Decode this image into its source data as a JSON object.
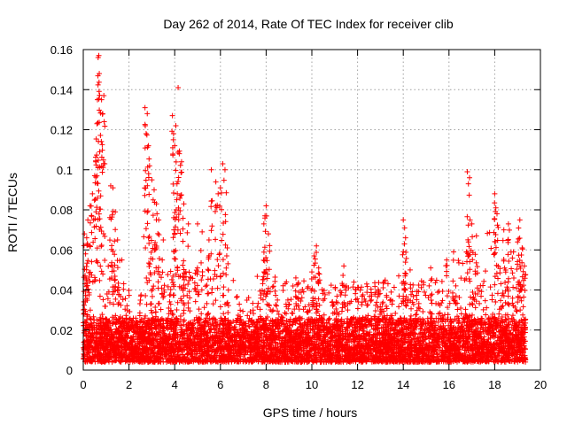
{
  "chart_data": {
    "type": "scatter",
    "title": "Day 262 of 2014, Rate Of TEC Index for receiver clib",
    "xlabel": "GPS time / hours",
    "ylabel": "ROTI / TECUs",
    "xlim": [
      0,
      20
    ],
    "ylim": [
      0,
      0.16
    ],
    "xticks": [
      0,
      2,
      4,
      6,
      8,
      10,
      12,
      14,
      16,
      18,
      20
    ],
    "yticks": [
      0,
      0.02,
      0.04,
      0.06,
      0.08,
      0.1,
      0.12,
      0.14,
      0.16
    ],
    "xtick_labels": [
      "0",
      "2",
      "4",
      "6",
      "8",
      "10",
      "12",
      "14",
      "16",
      "18",
      "20"
    ],
    "ytick_labels": [
      "0",
      "0.02",
      "0.04",
      "0.06",
      "0.08",
      "0.1",
      "0.12",
      "0.14",
      "0.16"
    ],
    "grid": true,
    "marker": "plus",
    "series": [
      {
        "name": "ROTI",
        "color": "#ff0000",
        "time_range_hours": [
          0,
          19.35
        ],
        "points": [
          [
            0.05,
            0.068
          ],
          [
            0.1,
            0.058
          ],
          [
            0.15,
            0.066
          ],
          [
            0.2,
            0.075
          ],
          [
            0.3,
            0.082
          ],
          [
            0.4,
            0.088
          ],
          [
            0.5,
            0.097
          ],
          [
            0.55,
            0.104
          ],
          [
            0.6,
            0.123
          ],
          [
            0.62,
            0.135
          ],
          [
            0.65,
            0.156
          ],
          [
            0.68,
            0.157
          ],
          [
            0.7,
            0.148
          ],
          [
            0.72,
            0.109
          ],
          [
            0.8,
            0.135
          ],
          [
            0.85,
            0.128
          ],
          [
            0.9,
            0.137
          ],
          [
            1.2,
            0.092
          ],
          [
            1.3,
            0.091
          ],
          [
            1.4,
            0.079
          ],
          [
            1.5,
            0.065
          ],
          [
            2.7,
            0.131
          ],
          [
            2.75,
            0.118
          ],
          [
            2.8,
            0.128
          ],
          [
            2.85,
            0.112
          ],
          [
            2.9,
            0.102
          ],
          [
            3.0,
            0.095
          ],
          [
            3.1,
            0.09
          ],
          [
            3.2,
            0.083
          ],
          [
            3.3,
            0.075
          ],
          [
            3.5,
            0.065
          ],
          [
            3.9,
            0.127
          ],
          [
            3.95,
            0.118
          ],
          [
            4.0,
            0.112
          ],
          [
            4.05,
            0.122
          ],
          [
            4.1,
            0.093
          ],
          [
            4.15,
            0.141
          ],
          [
            4.2,
            0.108
          ],
          [
            4.3,
            0.104
          ],
          [
            4.4,
            0.083
          ],
          [
            4.6,
            0.073
          ],
          [
            5.0,
            0.073
          ],
          [
            5.2,
            0.069
          ],
          [
            5.5,
            0.065
          ],
          [
            5.6,
            0.1
          ],
          [
            5.8,
            0.094
          ],
          [
            5.9,
            0.088
          ],
          [
            6.0,
            0.091
          ],
          [
            6.1,
            0.103
          ],
          [
            6.2,
            0.1
          ],
          [
            6.3,
            0.061
          ],
          [
            7.9,
            0.073
          ],
          [
            7.95,
            0.077
          ],
          [
            8.0,
            0.082
          ],
          [
            8.1,
            0.068
          ],
          [
            9.3,
            0.046
          ],
          [
            10.0,
            0.049
          ],
          [
            10.1,
            0.057
          ],
          [
            10.2,
            0.062
          ],
          [
            10.3,
            0.051
          ],
          [
            11.4,
            0.052
          ],
          [
            12.4,
            0.043
          ],
          [
            13.8,
            0.047
          ],
          [
            14.0,
            0.075
          ],
          [
            14.05,
            0.063
          ],
          [
            14.1,
            0.066
          ],
          [
            14.3,
            0.05
          ],
          [
            15.2,
            0.051
          ],
          [
            15.9,
            0.055
          ],
          [
            16.2,
            0.059
          ],
          [
            16.8,
            0.099
          ],
          [
            16.85,
            0.093
          ],
          [
            16.9,
            0.096
          ],
          [
            17.0,
            0.073
          ],
          [
            17.2,
            0.067
          ],
          [
            18.0,
            0.088
          ],
          [
            18.05,
            0.081
          ],
          [
            18.1,
            0.078
          ],
          [
            18.4,
            0.07
          ],
          [
            18.6,
            0.073
          ],
          [
            19.0,
            0.064
          ],
          [
            19.1,
            0.075
          ],
          [
            19.2,
            0.061
          ],
          [
            19.3,
            0.052
          ]
        ]
      }
    ]
  }
}
